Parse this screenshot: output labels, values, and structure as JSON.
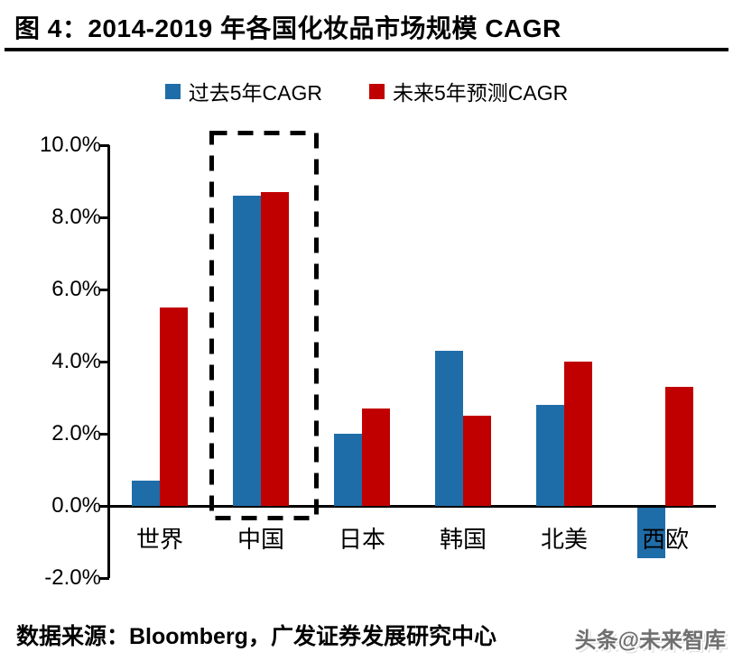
{
  "figure": {
    "title": "图 4：2014-2019 年各国化妆品市场规模 CAGR",
    "source": "数据来源：Bloomberg，广发证券发展研究中心",
    "watermark": "头条@未来智库"
  },
  "chart_data": {
    "type": "bar",
    "categories": [
      "世界",
      "中国",
      "日本",
      "韩国",
      "北美",
      "西欧"
    ],
    "series": [
      {
        "name": "过去5年CAGR",
        "color": "#1F6DA8",
        "values": [
          0.7,
          8.6,
          2.0,
          4.3,
          2.8,
          -1.4
        ]
      },
      {
        "name": "未来5年预测CAGR",
        "color": "#C00000",
        "values": [
          5.5,
          8.7,
          2.7,
          2.5,
          4.0,
          3.3
        ]
      }
    ],
    "y_ticks": [
      "10.0%",
      "8.0%",
      "6.0%",
      "4.0%",
      "2.0%",
      "0.0%",
      "-2.0%"
    ],
    "ylim": [
      -2,
      10
    ],
    "xlabel": "",
    "ylabel": "",
    "grid": false,
    "legend_position": "top-center",
    "highlight_category": "中国",
    "axis_color": "#000000",
    "highlight_box_color": "#000000"
  }
}
